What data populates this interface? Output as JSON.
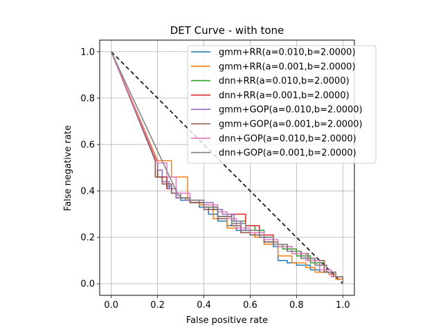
{
  "chart_data": {
    "type": "line",
    "title": "DET Curve - with tone",
    "xlabel": "False positive rate",
    "ylabel": "False negative rate",
    "xlim": [
      -0.05,
      1.05
    ],
    "ylim": [
      -0.05,
      1.05
    ],
    "xticks": [
      0.0,
      0.2,
      0.4,
      0.6,
      0.8,
      1.0
    ],
    "yticks": [
      0.0,
      0.2,
      0.4,
      0.6,
      0.8,
      1.0
    ],
    "xtick_labels": [
      "0.0",
      "0.2",
      "0.4",
      "0.6",
      "0.8",
      "1.0"
    ],
    "ytick_labels": [
      "0.0",
      "0.2",
      "0.4",
      "0.6",
      "0.8",
      "1.0"
    ],
    "grid": true,
    "legend_position": "top-right",
    "reference_line": {
      "x": [
        0,
        1
      ],
      "y": [
        1,
        0
      ],
      "color": "#000000",
      "style": "dashed"
    },
    "series": [
      {
        "name": "gmm+RR(a=0.010,b=2.0000)",
        "color": "#1f77b4",
        "x": [
          0.0,
          0.2,
          0.2,
          0.22,
          0.24,
          0.26,
          0.28,
          0.3,
          0.34,
          0.38,
          0.42,
          0.46,
          0.5,
          0.54,
          0.6,
          0.66,
          0.7,
          0.72,
          0.76,
          0.8,
          0.86,
          0.9,
          0.94,
          0.97,
          1.0
        ],
        "y": [
          1.0,
          0.52,
          0.46,
          0.44,
          0.42,
          0.39,
          0.37,
          0.36,
          0.35,
          0.33,
          0.3,
          0.27,
          0.25,
          0.23,
          0.21,
          0.18,
          0.16,
          0.1,
          0.09,
          0.08,
          0.06,
          0.05,
          0.04,
          0.02,
          0.0
        ]
      },
      {
        "name": "gmm+RR(a=0.001,b=2.0000)",
        "color": "#ff7f0e",
        "x": [
          0.0,
          0.2,
          0.26,
          0.33,
          0.38,
          0.44,
          0.5,
          0.56,
          0.62,
          0.66,
          0.72,
          0.78,
          0.84,
          0.88,
          0.94,
          0.97,
          1.0
        ],
        "y": [
          1.0,
          0.53,
          0.46,
          0.36,
          0.34,
          0.28,
          0.24,
          0.22,
          0.2,
          0.17,
          0.12,
          0.09,
          0.07,
          0.05,
          0.04,
          0.02,
          0.0
        ]
      },
      {
        "name": "dnn+RR(a=0.010,b=2.0000)",
        "color": "#2ca02c",
        "x": [
          0.0,
          0.2,
          0.2,
          0.24,
          0.28,
          0.34,
          0.4,
          0.46,
          0.52,
          0.58,
          0.62,
          0.66,
          0.7,
          0.74,
          0.8,
          0.86,
          0.92,
          0.96,
          1.0
        ],
        "y": [
          1.0,
          0.52,
          0.46,
          0.41,
          0.37,
          0.35,
          0.33,
          0.29,
          0.27,
          0.25,
          0.23,
          0.2,
          0.17,
          0.15,
          0.12,
          0.09,
          0.05,
          0.03,
          0.0
        ]
      },
      {
        "name": "dnn+RR(a=0.001,b=2.0000)",
        "color": "#d62728",
        "x": [
          0.0,
          0.2,
          0.2,
          0.24,
          0.28,
          0.34,
          0.4,
          0.46,
          0.52,
          0.58,
          0.64,
          0.7,
          0.76,
          0.82,
          0.88,
          0.93,
          0.97,
          1.0
        ],
        "y": [
          1.0,
          0.52,
          0.46,
          0.41,
          0.37,
          0.35,
          0.33,
          0.29,
          0.3,
          0.25,
          0.21,
          0.17,
          0.14,
          0.11,
          0.08,
          0.05,
          0.03,
          0.0
        ]
      },
      {
        "name": "gmm+GOP(a=0.010,b=2.0000)",
        "color": "#9467bd",
        "x": [
          0.0,
          0.2,
          0.2,
          0.22,
          0.25,
          0.28,
          0.32,
          0.38,
          0.44,
          0.48,
          0.53,
          0.56,
          0.6,
          0.64,
          0.7,
          0.76,
          0.82,
          0.88,
          0.93,
          0.97,
          1.0
        ],
        "y": [
          1.0,
          0.52,
          0.49,
          0.44,
          0.41,
          0.37,
          0.36,
          0.35,
          0.32,
          0.3,
          0.27,
          0.23,
          0.22,
          0.2,
          0.17,
          0.14,
          0.11,
          0.08,
          0.05,
          0.03,
          0.0
        ]
      },
      {
        "name": "gmm+GOP(a=0.001,b=2.0000)",
        "color": "#8c564b",
        "x": [
          0.0,
          0.19,
          0.19,
          0.22,
          0.26,
          0.3,
          0.34,
          0.4,
          0.46,
          0.52,
          0.56,
          0.6,
          0.66,
          0.72,
          0.78,
          0.85,
          0.92,
          0.96,
          1.0
        ],
        "y": [
          1.0,
          0.53,
          0.46,
          0.43,
          0.39,
          0.37,
          0.35,
          0.32,
          0.28,
          0.25,
          0.22,
          0.21,
          0.18,
          0.16,
          0.13,
          0.1,
          0.05,
          0.03,
          0.0
        ]
      },
      {
        "name": "dnn+GOP(a=0.010,b=2.0000)",
        "color": "#e377c2",
        "x": [
          0.0,
          0.2,
          0.24,
          0.28,
          0.34,
          0.4,
          0.46,
          0.5,
          0.54,
          0.6,
          0.66,
          0.72,
          0.78,
          0.84,
          0.9,
          0.95,
          1.0
        ],
        "y": [
          1.0,
          0.52,
          0.46,
          0.39,
          0.36,
          0.34,
          0.31,
          0.28,
          0.24,
          0.22,
          0.19,
          0.16,
          0.13,
          0.1,
          0.06,
          0.03,
          0.0
        ]
      },
      {
        "name": "dnn+GOP(a=0.001,b=2.0000)",
        "color": "#7f7f7f",
        "x": [
          0.0,
          0.29,
          0.3,
          0.34,
          0.4,
          0.46,
          0.52,
          0.58,
          0.64,
          0.7,
          0.76,
          0.82,
          0.88,
          0.93,
          0.97,
          1.0
        ],
        "y": [
          1.0,
          0.38,
          0.37,
          0.36,
          0.33,
          0.29,
          0.26,
          0.23,
          0.2,
          0.17,
          0.14,
          0.11,
          0.08,
          0.05,
          0.03,
          0.0
        ]
      }
    ]
  }
}
